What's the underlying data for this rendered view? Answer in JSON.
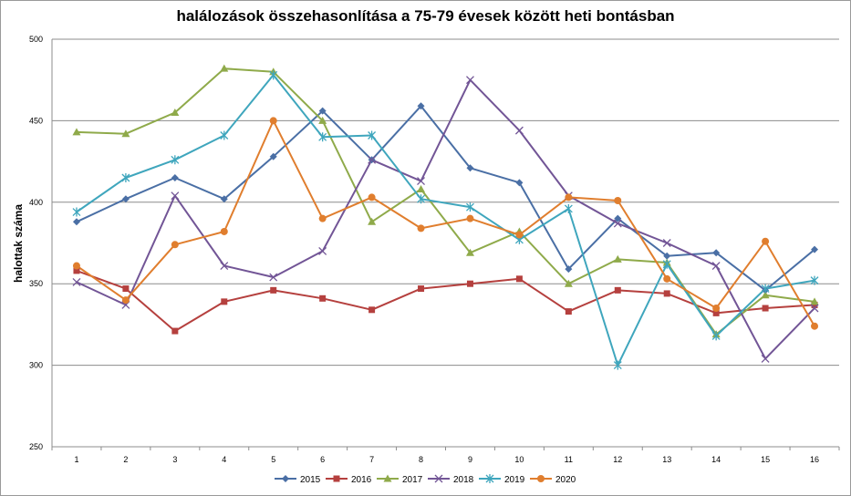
{
  "chart_data": {
    "type": "line",
    "title": "halálozások összehasonlítása a 75-79 évesek között heti bontásban",
    "ylabel": "halottak száma",
    "xlabel": "",
    "ylim": [
      250,
      500
    ],
    "yticks": [
      250,
      300,
      350,
      400,
      450,
      500
    ],
    "x": [
      1,
      2,
      3,
      4,
      5,
      6,
      7,
      8,
      9,
      10,
      11,
      12,
      13,
      14,
      15,
      16
    ],
    "grid": "horizontal",
    "legend_position": "bottom",
    "series": [
      {
        "name": "2015",
        "color": "#4a6fa5",
        "marker": "diamond",
        "values": [
          388,
          402,
          415,
          402,
          428,
          456,
          426,
          459,
          421,
          412,
          359,
          390,
          367,
          369,
          346,
          371
        ]
      },
      {
        "name": "2016",
        "color": "#b5403e",
        "marker": "square",
        "values": [
          358,
          347,
          321,
          339,
          346,
          341,
          334,
          347,
          350,
          353,
          333,
          346,
          344,
          332,
          335,
          337
        ]
      },
      {
        "name": "2017",
        "color": "#8faa4a",
        "marker": "triangle",
        "values": [
          443,
          442,
          455,
          482,
          480,
          450,
          388,
          408,
          369,
          382,
          350,
          365,
          363,
          319,
          343,
          339
        ]
      },
      {
        "name": "2018",
        "color": "#725596",
        "marker": "x",
        "values": [
          351,
          337,
          404,
          361,
          354,
          370,
          426,
          413,
          475,
          444,
          404,
          387,
          375,
          361,
          304,
          335
        ]
      },
      {
        "name": "2019",
        "color": "#3fa6bd",
        "marker": "star",
        "values": [
          394,
          415,
          426,
          441,
          478,
          440,
          441,
          402,
          397,
          377,
          396,
          300,
          362,
          318,
          347,
          352
        ]
      },
      {
        "name": "2020",
        "color": "#e07e2e",
        "marker": "circle",
        "values": [
          361,
          340,
          374,
          382,
          450,
          390,
          403,
          384,
          390,
          380,
          403,
          401,
          353,
          335,
          376,
          324
        ]
      }
    ]
  }
}
